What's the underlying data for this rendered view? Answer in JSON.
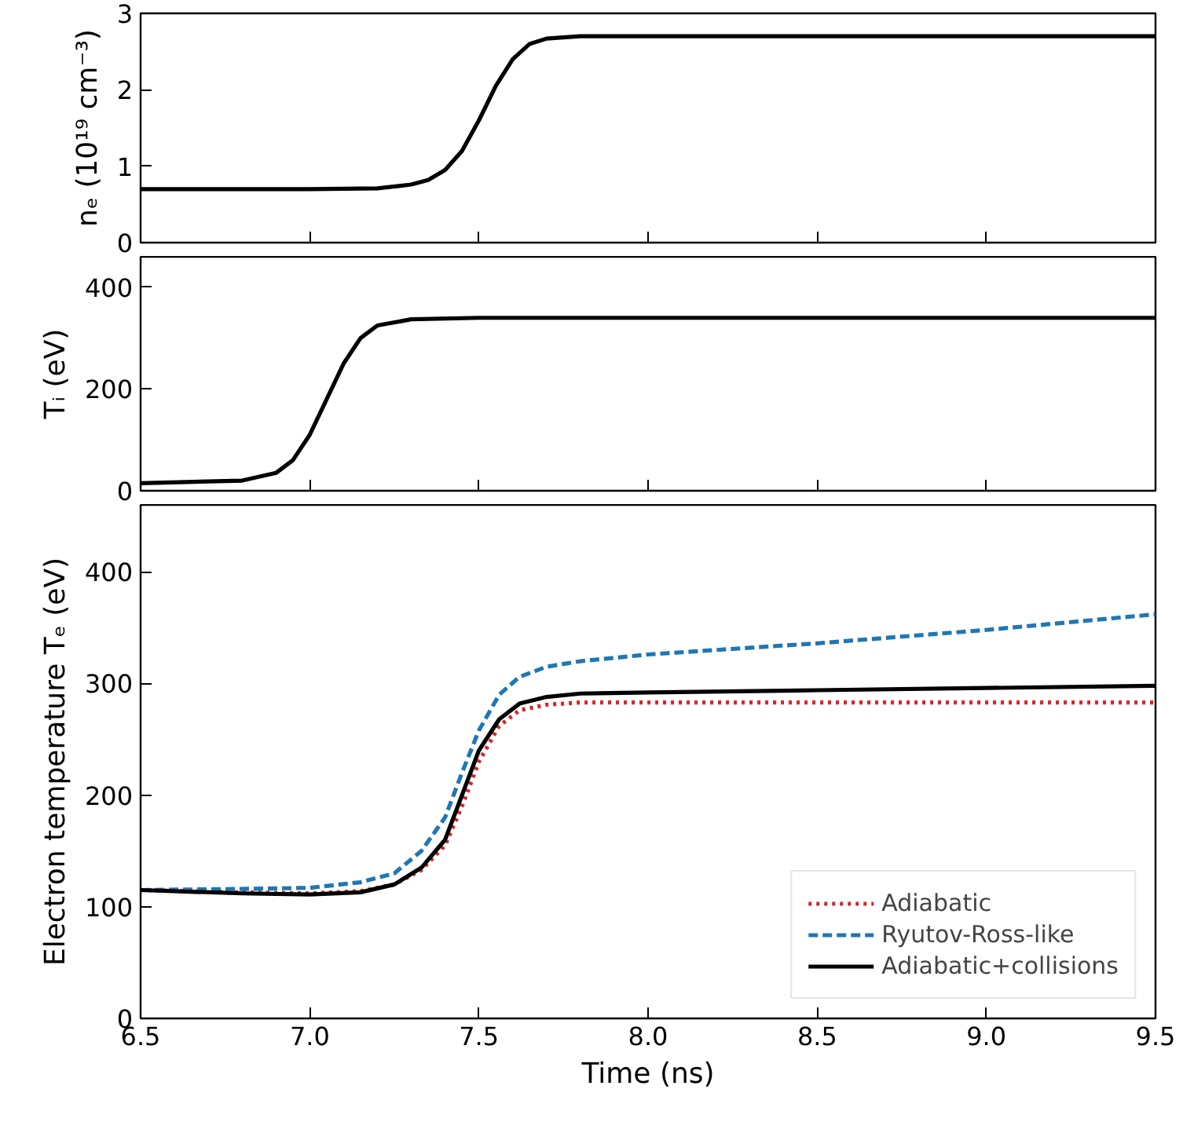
{
  "chart_data": [
    {
      "type": "line",
      "ylabel": "nₑ (10¹⁹ cm⁻³)",
      "xlim": [
        6.5,
        9.5
      ],
      "ylim": [
        0,
        3
      ],
      "yticks": [
        0,
        1,
        2,
        3
      ],
      "xticks": [
        {
          "value": 6.5,
          "label": null
        },
        {
          "value": 7,
          "label": null
        },
        {
          "value": 7.5,
          "label": null
        },
        {
          "value": 8,
          "label": null
        },
        {
          "value": 8.5,
          "label": null
        },
        {
          "value": 9,
          "label": null
        },
        {
          "value": 9.5,
          "label": null
        }
      ],
      "tick_labels": "y",
      "grid": false,
      "legend": false,
      "series": [
        {
          "color": "#000000",
          "line_style": "solid",
          "x": [
            6.5,
            7.0,
            7.2,
            7.3,
            7.35,
            7.4,
            7.45,
            7.5,
            7.55,
            7.6,
            7.65,
            7.7,
            7.8,
            9.5
          ],
          "values": [
            0.7,
            0.7,
            0.71,
            0.76,
            0.82,
            0.95,
            1.2,
            1.6,
            2.05,
            2.4,
            2.6,
            2.67,
            2.7,
            2.7
          ]
        }
      ]
    },
    {
      "type": "line",
      "ylabel": "Tᵢ (eV)",
      "xlim": [
        6.5,
        9.5
      ],
      "ylim": [
        0,
        460
      ],
      "yticks": [
        0,
        200,
        400
      ],
      "xticks": [
        {
          "value": 6.5,
          "label": null
        },
        {
          "value": 7,
          "label": null
        },
        {
          "value": 7.5,
          "label": null
        },
        {
          "value": 8,
          "label": null
        },
        {
          "value": 8.5,
          "label": null
        },
        {
          "value": 9,
          "label": null
        },
        {
          "value": 9.5,
          "label": null
        }
      ],
      "tick_labels": "y",
      "grid": false,
      "legend": false,
      "series": [
        {
          "color": "#000000",
          "line_style": "solid",
          "x": [
            6.5,
            6.8,
            6.9,
            6.95,
            7.0,
            7.05,
            7.1,
            7.15,
            7.2,
            7.3,
            7.5,
            9.5
          ],
          "values": [
            15,
            20,
            35,
            60,
            110,
            180,
            250,
            300,
            325,
            337,
            340,
            340
          ]
        }
      ]
    },
    {
      "type": "line",
      "xlabel": "Time (ns)",
      "ylabel": "Electron temperature Tₑ (eV)",
      "xlim": [
        6.5,
        9.5
      ],
      "ylim": [
        0,
        460
      ],
      "yticks": [
        0,
        100,
        200,
        300,
        400
      ],
      "xticks": [
        6.5,
        {
          "value": 7,
          "label": "7.0"
        },
        7.5,
        {
          "value": 8,
          "label": "8.0"
        },
        8.5,
        {
          "value": 9,
          "label": "9.0"
        },
        9.5
      ],
      "grid": false,
      "legend": "bottom right",
      "series": [
        {
          "name": "Adiabatic",
          "color": "#d62728",
          "line_style": "dotted",
          "x": [
            6.5,
            6.8,
            7.0,
            7.15,
            7.25,
            7.33,
            7.4,
            7.45,
            7.5,
            7.56,
            7.62,
            7.7,
            7.8,
            9.5
          ],
          "values": [
            115,
            113,
            112,
            114,
            120,
            133,
            155,
            190,
            230,
            262,
            276,
            281,
            283,
            283
          ]
        },
        {
          "name": "Ryutov-Ross-like",
          "color": "#1f77b4",
          "line_style": "dashed",
          "x": [
            6.5,
            6.8,
            7.0,
            7.15,
            7.25,
            7.33,
            7.4,
            7.45,
            7.5,
            7.56,
            7.62,
            7.7,
            7.8,
            8.0,
            8.5,
            9.0,
            9.5
          ],
          "values": [
            115,
            116,
            117,
            122,
            130,
            150,
            180,
            220,
            258,
            290,
            306,
            315,
            320,
            326,
            336,
            348,
            362
          ]
        },
        {
          "name": "Adiabatic+collisions",
          "color": "#000000",
          "line_style": "solid",
          "x": [
            6.5,
            6.8,
            7.0,
            7.15,
            7.25,
            7.33,
            7.4,
            7.45,
            7.5,
            7.56,
            7.62,
            7.7,
            7.8,
            8.0,
            8.5,
            9.0,
            9.5
          ],
          "values": [
            115,
            112,
            111,
            113,
            120,
            135,
            160,
            200,
            240,
            268,
            282,
            288,
            291,
            292,
            294,
            296,
            298
          ]
        }
      ]
    }
  ]
}
